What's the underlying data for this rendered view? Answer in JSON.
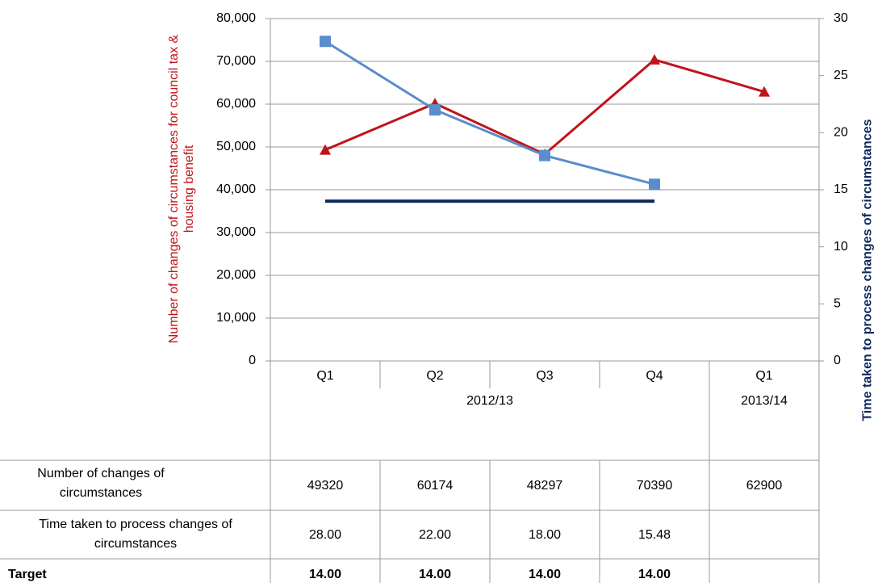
{
  "chart_data": {
    "type": "line",
    "y_label": "Number of changes of circumstances for council tax & housing benefit",
    "y2_label": "Time taken to process changes of circumstances",
    "categories": [
      "Q1",
      "Q2",
      "Q3",
      "Q4",
      "Q1"
    ],
    "category_groups": [
      {
        "label": "2012/13",
        "count": 4
      },
      {
        "label": "2013/14",
        "count": 1
      }
    ],
    "ylim": [
      0,
      80000
    ],
    "yticks": [
      0,
      {
        "value": 10000,
        "label": "10,000"
      },
      {
        "value": 20000,
        "label": "20,000"
      },
      {
        "value": 30000,
        "label": "30,000"
      },
      {
        "value": 40000,
        "label": "40,000"
      },
      {
        "value": 50000,
        "label": "50,000"
      },
      {
        "value": 60000,
        "label": "60,000"
      },
      {
        "value": 70000,
        "label": "70,000"
      },
      {
        "value": 80000,
        "label": "80,000"
      }
    ],
    "y2lim": [
      0,
      30
    ],
    "y2ticks": [
      0,
      5,
      10,
      15,
      20,
      25,
      30
    ],
    "grid": true,
    "series": [
      {
        "name": "Number of changes of circumstances",
        "color": "#c0141b",
        "marker": "triangle",
        "values": [
          49320,
          60174,
          48297,
          70390,
          62900
        ]
      },
      {
        "name": "Time taken to process changes of circumstances",
        "color": "#5a8dcc",
        "marker": "square",
        "axis": "y2",
        "values": [
          28,
          22,
          18,
          15.48,
          null
        ],
        "value_labels": [
          "28.00",
          "22.00",
          "18.00",
          "15.48",
          null
        ]
      },
      {
        "name": "Target",
        "color": "#0e2a5c",
        "axis": "y2",
        "values": [
          14,
          14,
          14,
          14,
          null
        ],
        "value_labels": [
          "14.00",
          "14.00",
          "14.00",
          "14.00",
          null
        ]
      }
    ]
  }
}
